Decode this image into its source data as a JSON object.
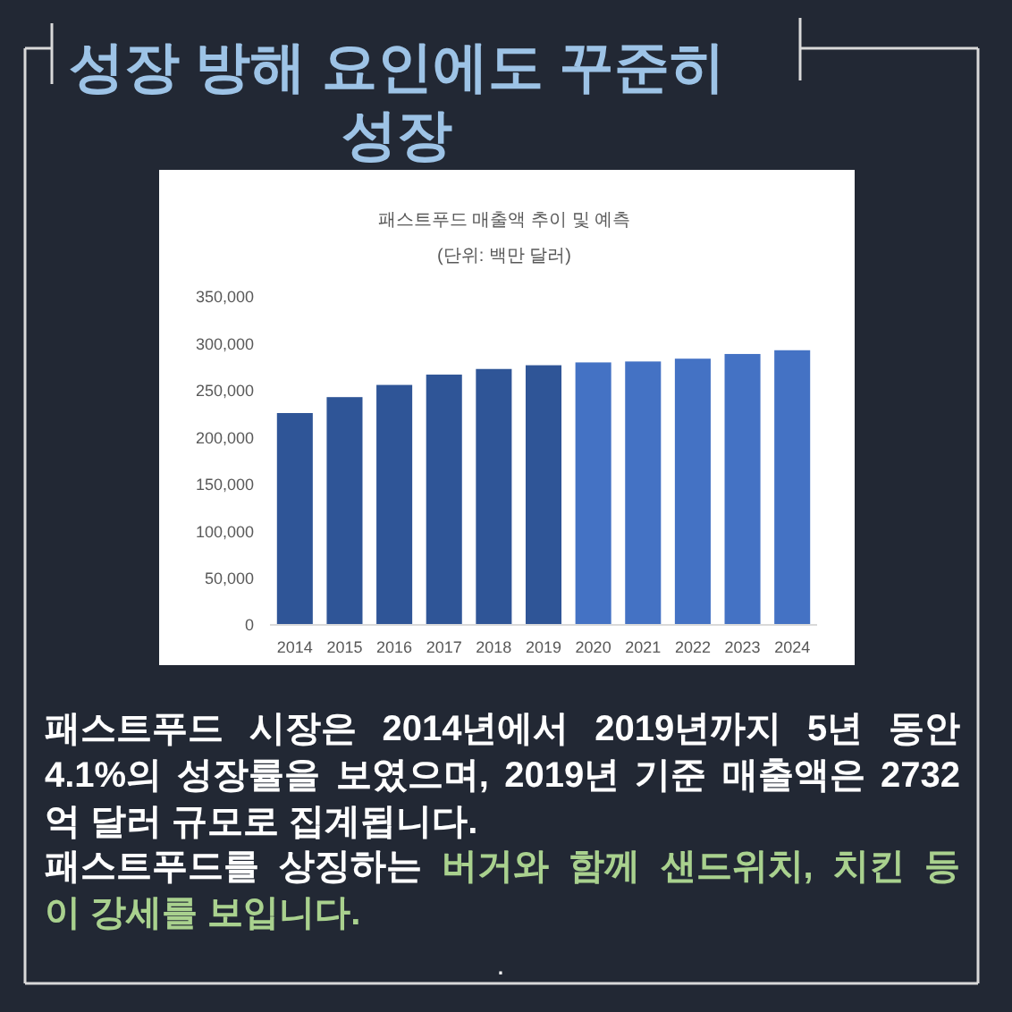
{
  "chart_data": {
    "type": "bar",
    "title": "성장 방해 요인에도 꾸준히 성장",
    "subtitle": "패스트푸드 매출액 추이 및 예측",
    "categories": [
      "2014",
      "2015",
      "2016",
      "2017",
      "2018",
      "2019",
      "2020",
      "2021",
      "2022",
      "2023",
      "2024"
    ],
    "values": [
      226000,
      243000,
      256000,
      267000,
      273000,
      277000,
      280000,
      281000,
      284000,
      289000,
      293000
    ],
    "colors": [
      "#2f5597",
      "#2f5597",
      "#2f5597",
      "#2f5597",
      "#2f5597",
      "#2f5597",
      "#4472c4",
      "#4472c4",
      "#4472c4",
      "#4472c4",
      "#4472c4"
    ],
    "ylim": [
      0,
      350000
    ],
    "yticks": [
      0,
      {
        "value": 50000,
        "label": "50,000"
      },
      {
        "value": 100000,
        "label": "100,000"
      },
      {
        "value": 150000,
        "label": "150,000"
      },
      {
        "value": 200000,
        "label": "200,000"
      },
      {
        "value": 250000,
        "label": "250,000"
      },
      {
        "value": 300000,
        "label": "300,000"
      },
      {
        "value": 350000,
        "label": "350,000"
      }
    ],
    "annotations": [
      "(단위: 백만 달러)",
      "패스트푸드 시장은 2014년에서 2019년까지 5년 동안\n4.1%의 성장률을 보였으며, 2019년 기준 매출액은 2732\n억 달러 규모로 집계됩니다.",
      "패스트푸드를 상징하는",
      "버거와 함께 샌드위치, 치킨 등",
      "이 강세를 보입니다.",
      "."
    ]
  }
}
